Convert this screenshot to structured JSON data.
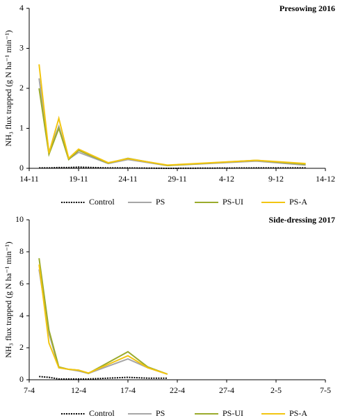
{
  "chart_data": [
    {
      "type": "line",
      "title": "Presowing 2016",
      "y_label": "NH₃ flux trapped (g N ha⁻¹ min⁻¹)",
      "x": [
        "15-11",
        "16-11",
        "17-11",
        "18-11",
        "19-11",
        "22-11",
        "24-11",
        "28-11",
        "7-12",
        "12-12"
      ],
      "xlim": [
        "14-11",
        "14-12"
      ],
      "xticks": [
        "14-11",
        "19-11",
        "24-11",
        "29-11",
        "4-12",
        "9-12",
        "14-12"
      ],
      "ylim": [
        0,
        4
      ],
      "yticks": [
        0,
        1,
        2,
        3,
        4
      ],
      "series": [
        {
          "name": "Control",
          "color": "#000000",
          "dashed": true,
          "values": [
            0.01,
            0.01,
            0.02,
            0.02,
            0.03,
            0.01,
            0.01,
            0,
            0.01,
            0.01
          ]
        },
        {
          "name": "PS",
          "color": "#a6a6a6",
          "values": [
            2.25,
            0.4,
            1.05,
            0.23,
            0.4,
            0.12,
            0.22,
            0.07,
            0.18,
            0.08
          ]
        },
        {
          "name": "PS-UI",
          "color": "#9aab2c",
          "values": [
            2.0,
            0.35,
            1.0,
            0.22,
            0.45,
            0.13,
            0.25,
            0.07,
            0.2,
            0.1
          ]
        },
        {
          "name": "PS-A",
          "color": "#f2c511",
          "values": [
            2.6,
            0.38,
            1.25,
            0.25,
            0.48,
            0.14,
            0.24,
            0.08,
            0.2,
            0.12
          ]
        }
      ]
    },
    {
      "type": "line",
      "title": "Side-dressing 2017",
      "y_label": "NH₃ flux trapped (g N ha⁻¹ min⁻¹)",
      "x": [
        "8-4",
        "9-4",
        "10-4",
        "11-4",
        "12-4",
        "13-4",
        "17-4",
        "19-4",
        "21-4"
      ],
      "xlim": [
        "7-4",
        "7-5"
      ],
      "xticks": [
        "7-4",
        "12-4",
        "17-4",
        "22-4",
        "27-4",
        "2-5",
        "7-5"
      ],
      "ylim": [
        0,
        10
      ],
      "yticks": [
        0,
        2,
        4,
        6,
        8,
        10
      ],
      "series": [
        {
          "name": "Control",
          "color": "#000000",
          "dashed": true,
          "values": [
            0.2,
            0.15,
            0.05,
            0.05,
            0.05,
            0.05,
            0.15,
            0.1,
            0.1
          ]
        },
        {
          "name": "PS",
          "color": "#a6a6a6",
          "values": [
            6.9,
            2.9,
            0.75,
            0.65,
            0.55,
            0.4,
            1.3,
            0.75,
            0.35
          ]
        },
        {
          "name": "PS-UI",
          "color": "#9aab2c",
          "values": [
            7.6,
            3.1,
            0.8,
            0.65,
            0.6,
            0.4,
            1.75,
            0.8,
            0.35
          ]
        },
        {
          "name": "PS-A",
          "color": "#f2c511",
          "values": [
            7.2,
            2.3,
            0.75,
            0.65,
            0.6,
            0.42,
            1.5,
            0.75,
            0.35
          ]
        }
      ]
    }
  ]
}
